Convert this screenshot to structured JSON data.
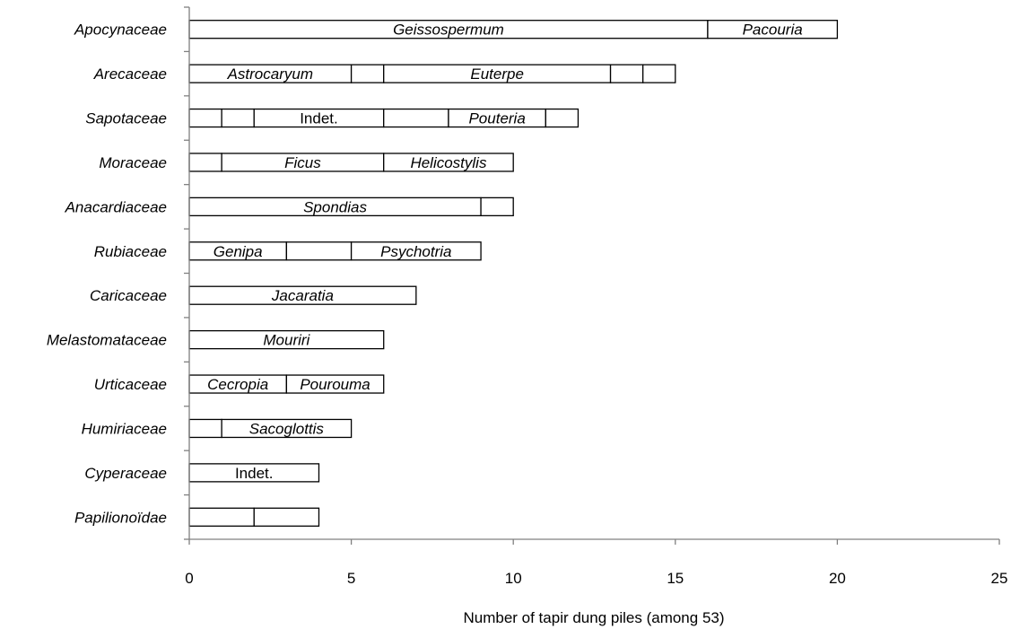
{
  "chart_data": {
    "type": "bar",
    "orientation": "horizontal",
    "stacked": true,
    "xlabel": "Number of tapir dung piles (among 53)",
    "xlim": [
      0,
      25
    ],
    "xticks": [
      0,
      5,
      10,
      15,
      20,
      25
    ],
    "grid": false,
    "categories": [
      {
        "name": "Apocynaceae",
        "segments": [
          {
            "from": 0,
            "to": 16,
            "label": "Geissospermum",
            "italic": true
          },
          {
            "from": 16,
            "to": 20,
            "label": "Pacouria",
            "italic": true
          }
        ]
      },
      {
        "name": "Arecaceae",
        "segments": [
          {
            "from": 0,
            "to": 5,
            "label": "Astrocaryum",
            "italic": true
          },
          {
            "from": 5,
            "to": 6,
            "label": "",
            "italic": true
          },
          {
            "from": 6,
            "to": 13,
            "label": "Euterpe",
            "italic": true
          },
          {
            "from": 13,
            "to": 14,
            "label": "",
            "italic": true
          },
          {
            "from": 14,
            "to": 15,
            "label": "",
            "italic": true
          }
        ]
      },
      {
        "name": "Sapotaceae",
        "segments": [
          {
            "from": 0,
            "to": 1,
            "label": "",
            "italic": false
          },
          {
            "from": 1,
            "to": 2,
            "label": "",
            "italic": false
          },
          {
            "from": 2,
            "to": 6,
            "label": "Indet.",
            "italic": false
          },
          {
            "from": 6,
            "to": 8,
            "label": "",
            "italic": false
          },
          {
            "from": 8,
            "to": 11,
            "label": "Pouteria",
            "italic": true
          },
          {
            "from": 11,
            "to": 12,
            "label": "",
            "italic": false
          }
        ]
      },
      {
        "name": "Moraceae",
        "segments": [
          {
            "from": 0,
            "to": 1,
            "label": "",
            "italic": true
          },
          {
            "from": 1,
            "to": 6,
            "label": "Ficus",
            "italic": true
          },
          {
            "from": 6,
            "to": 10,
            "label": "Helicostylis",
            "italic": true
          }
        ]
      },
      {
        "name": "Anacardiaceae",
        "segments": [
          {
            "from": 0,
            "to": 9,
            "label": "Spondias",
            "italic": true
          },
          {
            "from": 9,
            "to": 10,
            "label": "",
            "italic": true
          }
        ]
      },
      {
        "name": "Rubiaceae",
        "segments": [
          {
            "from": 0,
            "to": 3,
            "label": "Genipa",
            "italic": true
          },
          {
            "from": 3,
            "to": 5,
            "label": "",
            "italic": true
          },
          {
            "from": 5,
            "to": 9,
            "label": "Psychotria",
            "italic": true
          }
        ]
      },
      {
        "name": "Caricaceae",
        "segments": [
          {
            "from": 0,
            "to": 7,
            "label": "Jacaratia",
            "italic": true
          }
        ]
      },
      {
        "name": "Melastomataceae",
        "segments": [
          {
            "from": 0,
            "to": 6,
            "label": "Mouriri",
            "italic": true
          }
        ]
      },
      {
        "name": "Urticaceae",
        "segments": [
          {
            "from": 0,
            "to": 3,
            "label": "Cecropia",
            "italic": true
          },
          {
            "from": 3,
            "to": 6,
            "label": "Pourouma",
            "italic": true
          }
        ]
      },
      {
        "name": "Humiriaceae",
        "segments": [
          {
            "from": 0,
            "to": 1,
            "label": "",
            "italic": true
          },
          {
            "from": 1,
            "to": 5,
            "label": "Sacoglottis",
            "italic": true
          }
        ]
      },
      {
        "name": "Cyperaceae",
        "segments": [
          {
            "from": 0,
            "to": 4,
            "label": "Indet.",
            "italic": false
          }
        ]
      },
      {
        "name": "Papilionoïdae",
        "segments": [
          {
            "from": 0,
            "to": 2,
            "label": "",
            "italic": true
          },
          {
            "from": 2,
            "to": 4,
            "label": "",
            "italic": true
          }
        ]
      }
    ]
  }
}
